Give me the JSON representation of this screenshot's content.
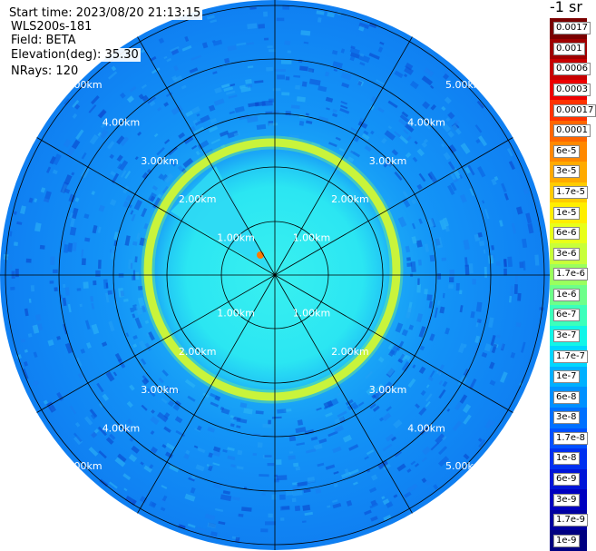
{
  "info": {
    "start_time": "Start time: 2023/08/20 21:13:15",
    "instrument": "WLS200s-181",
    "field": "Field: BETA",
    "elevation": "Elevation(deg): 35.30",
    "nrays": "NRays: 120"
  },
  "range_rings": [
    "1.00km",
    "2.00km",
    "3.00km",
    "4.00km",
    "5.00km"
  ],
  "colorbar": {
    "unit": "-1 sr",
    "labels": [
      "0.0017",
      "0.001",
      "0.0006",
      "0.0003",
      "0.00017",
      "0.0001",
      "6e-5",
      "3e-5",
      "1.7e-5",
      "1e-5",
      "6e-6",
      "3e-6",
      "1.7e-6",
      "1e-6",
      "6e-7",
      "3e-7",
      "1.7e-7",
      "1e-7",
      "6e-8",
      "3e-8",
      "1.7e-8",
      "1e-8",
      "6e-9",
      "3e-9",
      "1.7e-9",
      "1e-9"
    ],
    "colors": [
      "#7a0000",
      "#a00000",
      "#c80000",
      "#ee0000",
      "#ff3300",
      "#ff6600",
      "#ff8800",
      "#ffaa00",
      "#ffcc00",
      "#ffee00",
      "#e8ff1a",
      "#c8ff3a",
      "#9aff5e",
      "#6dff8a",
      "#3cffbb",
      "#12f5e8",
      "#00d7ff",
      "#00b0ff",
      "#0090ff",
      "#0070ff",
      "#0050ff",
      "#0030f0",
      "#0015d8",
      "#0000c0",
      "#0000a0",
      "#000080"
    ]
  }
}
